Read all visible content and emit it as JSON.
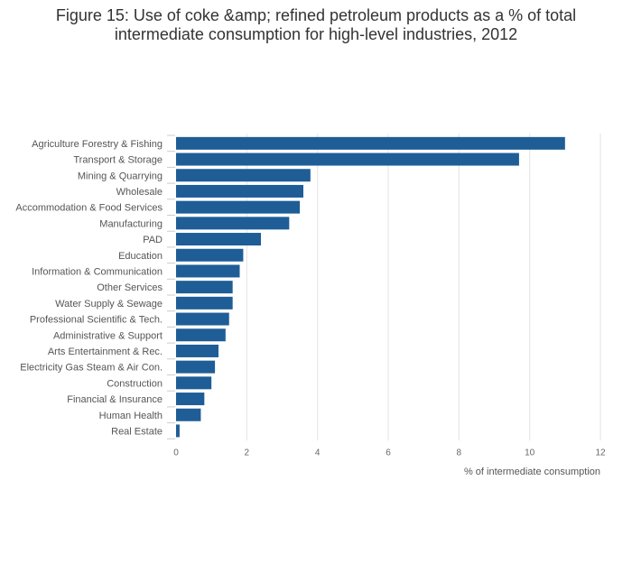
{
  "chart_data": {
    "type": "bar",
    "orientation": "horizontal",
    "title": "Figure 15: Use of coke &amp; refined petroleum products as a % of total intermediate consumption for high-level industries, 2012",
    "xlabel": "% of intermediate consumption",
    "ylabel": "",
    "xlim": [
      0,
      12
    ],
    "xticks": [
      0,
      2,
      4,
      6,
      8,
      10,
      12
    ],
    "grid": true,
    "legend": "none",
    "bar_color": "#1f5d96",
    "categories": [
      "Agriculture Forestry & Fishing",
      "Transport & Storage",
      "Mining & Quarrying",
      "Wholesale",
      "Accommodation & Food Services",
      "Manufacturing",
      "PAD",
      "Education",
      "Information & Communication",
      "Other Services",
      "Water Supply & Sewage",
      "Professional Scientific & Tech.",
      "Administrative & Support",
      "Arts Entertainment & Rec.",
      "Electricity Gas Steam & Air Con.",
      "Construction",
      "Financial & Insurance",
      "Human Health",
      "Real Estate"
    ],
    "values": [
      11.0,
      9.7,
      3.8,
      3.6,
      3.5,
      3.2,
      2.4,
      1.9,
      1.8,
      1.6,
      1.6,
      1.5,
      1.4,
      1.2,
      1.1,
      1.0,
      0.8,
      0.7,
      0.1
    ]
  }
}
